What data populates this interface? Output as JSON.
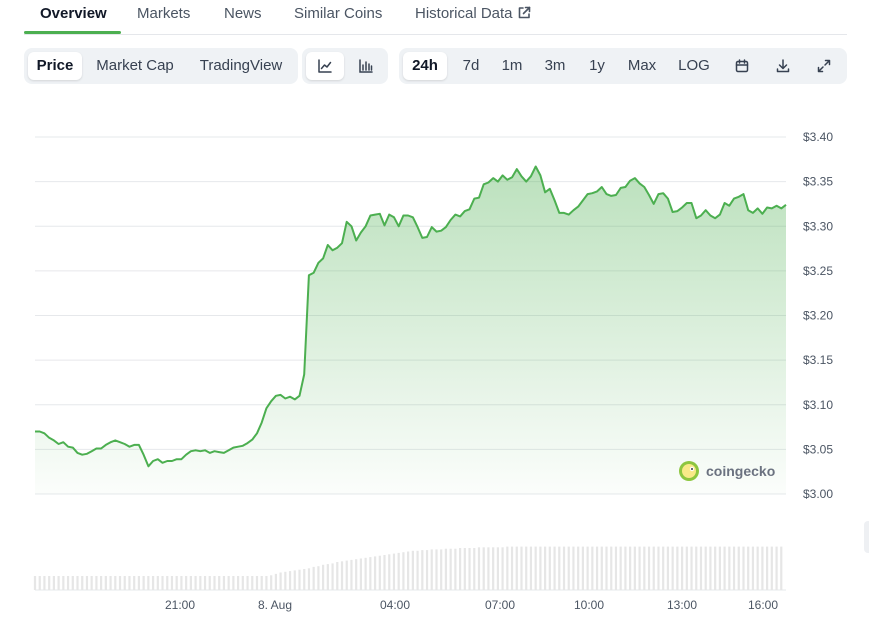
{
  "tabs": [
    {
      "label": "Overview",
      "active": true
    },
    {
      "label": "Markets"
    },
    {
      "label": "News"
    },
    {
      "label": "Similar Coins"
    },
    {
      "label": "Historical Data",
      "icon": "external-link-icon"
    }
  ],
  "toolbar": {
    "metric_options": [
      "Price",
      "Market Cap",
      "TradingView"
    ],
    "metric_selected": "Price",
    "chart_style_icons": [
      "line-chart-icon",
      "candlestick-chart-icon"
    ],
    "chart_style_selected": "line-chart-icon",
    "range_options": [
      "24h",
      "7d",
      "1m",
      "3m",
      "1y",
      "Max",
      "LOG"
    ],
    "range_selected": "24h",
    "action_icons": [
      "calendar-icon",
      "download-icon",
      "fullscreen-icon"
    ]
  },
  "watermark": {
    "text": "coingecko",
    "icon": "coingecko-logo-icon"
  },
  "colors": {
    "accent": "#4caf50",
    "line": "#4caf50",
    "volume": "#e6e6e6"
  },
  "chart_data": {
    "type": "area",
    "series": [
      {
        "values": [
          3.07,
          3.07,
          3.068,
          3.063,
          3.06,
          3.056,
          3.058,
          3.053,
          3.052,
          3.046,
          3.044,
          3.045,
          3.048,
          3.051,
          3.051,
          3.055,
          3.058,
          3.06,
          3.058,
          3.056,
          3.053,
          3.055,
          3.055,
          3.044,
          3.031,
          3.037,
          3.039,
          3.035,
          3.037,
          3.037,
          3.039,
          3.039,
          3.044,
          3.048,
          3.049,
          3.048,
          3.049,
          3.046,
          3.048,
          3.047,
          3.046,
          3.049,
          3.052,
          3.053,
          3.054,
          3.057,
          3.061,
          3.068,
          3.08,
          3.096,
          3.104,
          3.11,
          3.111,
          3.107,
          3.109,
          3.106,
          3.11,
          3.134,
          3.245,
          3.248,
          3.259,
          3.264,
          3.279,
          3.273,
          3.276,
          3.281,
          3.305,
          3.3,
          3.284,
          3.293,
          3.3,
          3.312,
          3.313,
          3.314,
          3.301,
          3.313,
          3.31,
          3.3,
          3.312,
          3.312,
          3.31,
          3.299,
          3.287,
          3.288,
          3.299,
          3.294,
          3.295,
          3.299,
          3.307,
          3.313,
          3.311,
          3.317,
          3.319,
          3.331,
          3.332,
          3.347,
          3.349,
          3.354,
          3.35,
          3.357,
          3.352,
          3.355,
          3.364,
          3.356,
          3.35,
          3.356,
          3.367,
          3.357,
          3.338,
          3.342,
          3.329,
          3.315,
          3.315,
          3.313,
          3.318,
          3.322,
          3.329,
          3.336,
          3.337,
          3.339,
          3.344,
          3.336,
          3.334,
          3.335,
          3.343,
          3.344,
          3.351,
          3.354,
          3.348,
          3.344,
          3.335,
          3.325,
          3.336,
          3.337,
          3.331,
          3.316,
          3.317,
          3.321,
          3.326,
          3.326,
          3.309,
          3.312,
          3.318,
          3.312,
          3.309,
          3.313,
          3.326,
          3.323,
          3.331,
          3.333,
          3.336,
          3.318,
          3.315,
          3.32,
          3.314,
          3.321,
          3.32,
          3.323,
          3.32,
          3.324
        ]
      }
    ],
    "volume": [
      0.2,
      0.2,
      0.2,
      0.2,
      0.2,
      0.2,
      0.2,
      0.2,
      0.2,
      0.2,
      0.2,
      0.2,
      0.2,
      0.2,
      0.2,
      0.2,
      0.2,
      0.2,
      0.2,
      0.2,
      0.2,
      0.2,
      0.2,
      0.2,
      0.2,
      0.2,
      0.2,
      0.2,
      0.2,
      0.2,
      0.2,
      0.2,
      0.2,
      0.2,
      0.2,
      0.2,
      0.2,
      0.2,
      0.2,
      0.2,
      0.2,
      0.2,
      0.2,
      0.2,
      0.2,
      0.2,
      0.2,
      0.2,
      0.2,
      0.2,
      0.21,
      0.23,
      0.25,
      0.26,
      0.27,
      0.28,
      0.29,
      0.3,
      0.31,
      0.33,
      0.34,
      0.36,
      0.37,
      0.38,
      0.4,
      0.41,
      0.42,
      0.43,
      0.44,
      0.45,
      0.46,
      0.47,
      0.48,
      0.49,
      0.5,
      0.51,
      0.52,
      0.53,
      0.54,
      0.55,
      0.56,
      0.56,
      0.57,
      0.57,
      0.58,
      0.58,
      0.58,
      0.59,
      0.59,
      0.59,
      0.6,
      0.6,
      0.6,
      0.6,
      0.61,
      0.61,
      0.61,
      0.61,
      0.61,
      0.61,
      0.62,
      0.62,
      0.62,
      0.62,
      0.62,
      0.62,
      0.62,
      0.62,
      0.62,
      0.62,
      0.62,
      0.62,
      0.62,
      0.62,
      0.62,
      0.62,
      0.62,
      0.62,
      0.62,
      0.62,
      0.62,
      0.62,
      0.62,
      0.62,
      0.62,
      0.62,
      0.62,
      0.62,
      0.62,
      0.62,
      0.62,
      0.62,
      0.62,
      0.62,
      0.62,
      0.62,
      0.62,
      0.62,
      0.62,
      0.62,
      0.62,
      0.62,
      0.62,
      0.62,
      0.62,
      0.62,
      0.62,
      0.62,
      0.62,
      0.62,
      0.62,
      0.62,
      0.62,
      0.62,
      0.62,
      0.62,
      0.62,
      0.62,
      0.62
    ],
    "x_tick_labels": [
      "21:00",
      "8. Aug",
      "04:00",
      "07:00",
      "10:00",
      "13:00",
      "16:00"
    ],
    "y_tick_labels": [
      "$3.40",
      "$3.35",
      "$3.30",
      "$3.25",
      "$3.20",
      "$3.15",
      "$3.10",
      "$3.05",
      "$3.00"
    ],
    "y_ticks": [
      3.4,
      3.35,
      3.3,
      3.25,
      3.2,
      3.15,
      3.1,
      3.05,
      3.0
    ],
    "ylim": [
      3.0,
      3.4
    ],
    "grid": true,
    "legend": "none"
  }
}
